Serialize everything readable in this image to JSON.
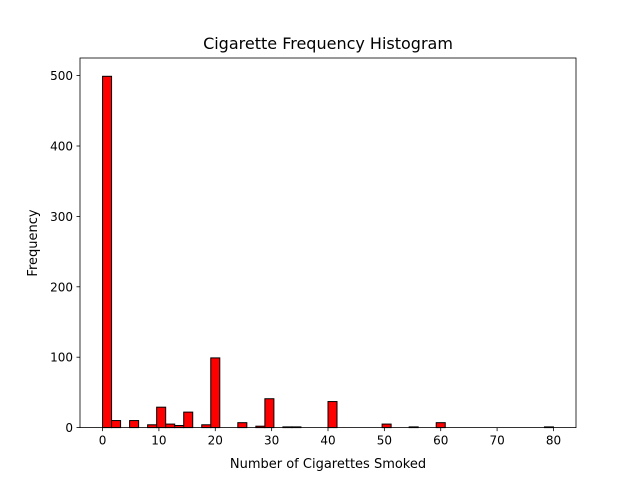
{
  "chart_data": {
    "type": "bar",
    "title": "Cigarette Frequency Histogram",
    "xlabel": "Number of Cigarettes Smoked",
    "ylabel": "Frequency",
    "xlim": [
      -4,
      84
    ],
    "ylim": [
      0,
      525
    ],
    "xticks": [
      0,
      10,
      20,
      30,
      40,
      50,
      60,
      70,
      80
    ],
    "yticks": [
      0,
      100,
      200,
      300,
      400,
      500
    ],
    "bin_width": 1.6,
    "bins": [
      {
        "x0": 0.0,
        "value": 499
      },
      {
        "x0": 1.6,
        "value": 10
      },
      {
        "x0": 4.8,
        "value": 10
      },
      {
        "x0": 8.0,
        "value": 4
      },
      {
        "x0": 9.6,
        "value": 29
      },
      {
        "x0": 11.2,
        "value": 5
      },
      {
        "x0": 12.8,
        "value": 3
      },
      {
        "x0": 14.4,
        "value": 22
      },
      {
        "x0": 17.6,
        "value": 4
      },
      {
        "x0": 19.2,
        "value": 99
      },
      {
        "x0": 24.0,
        "value": 7
      },
      {
        "x0": 27.2,
        "value": 2
      },
      {
        "x0": 28.8,
        "value": 41
      },
      {
        "x0": 32.0,
        "value": 1
      },
      {
        "x0": 33.6,
        "value": 1
      },
      {
        "x0": 40.0,
        "value": 37
      },
      {
        "x0": 49.6,
        "value": 5
      },
      {
        "x0": 54.4,
        "value": 1
      },
      {
        "x0": 59.2,
        "value": 7
      },
      {
        "x0": 78.4,
        "value": 1
      }
    ],
    "bar_color": "#ff0000",
    "edge_color": "#000000",
    "grid": false,
    "legend": "none"
  }
}
